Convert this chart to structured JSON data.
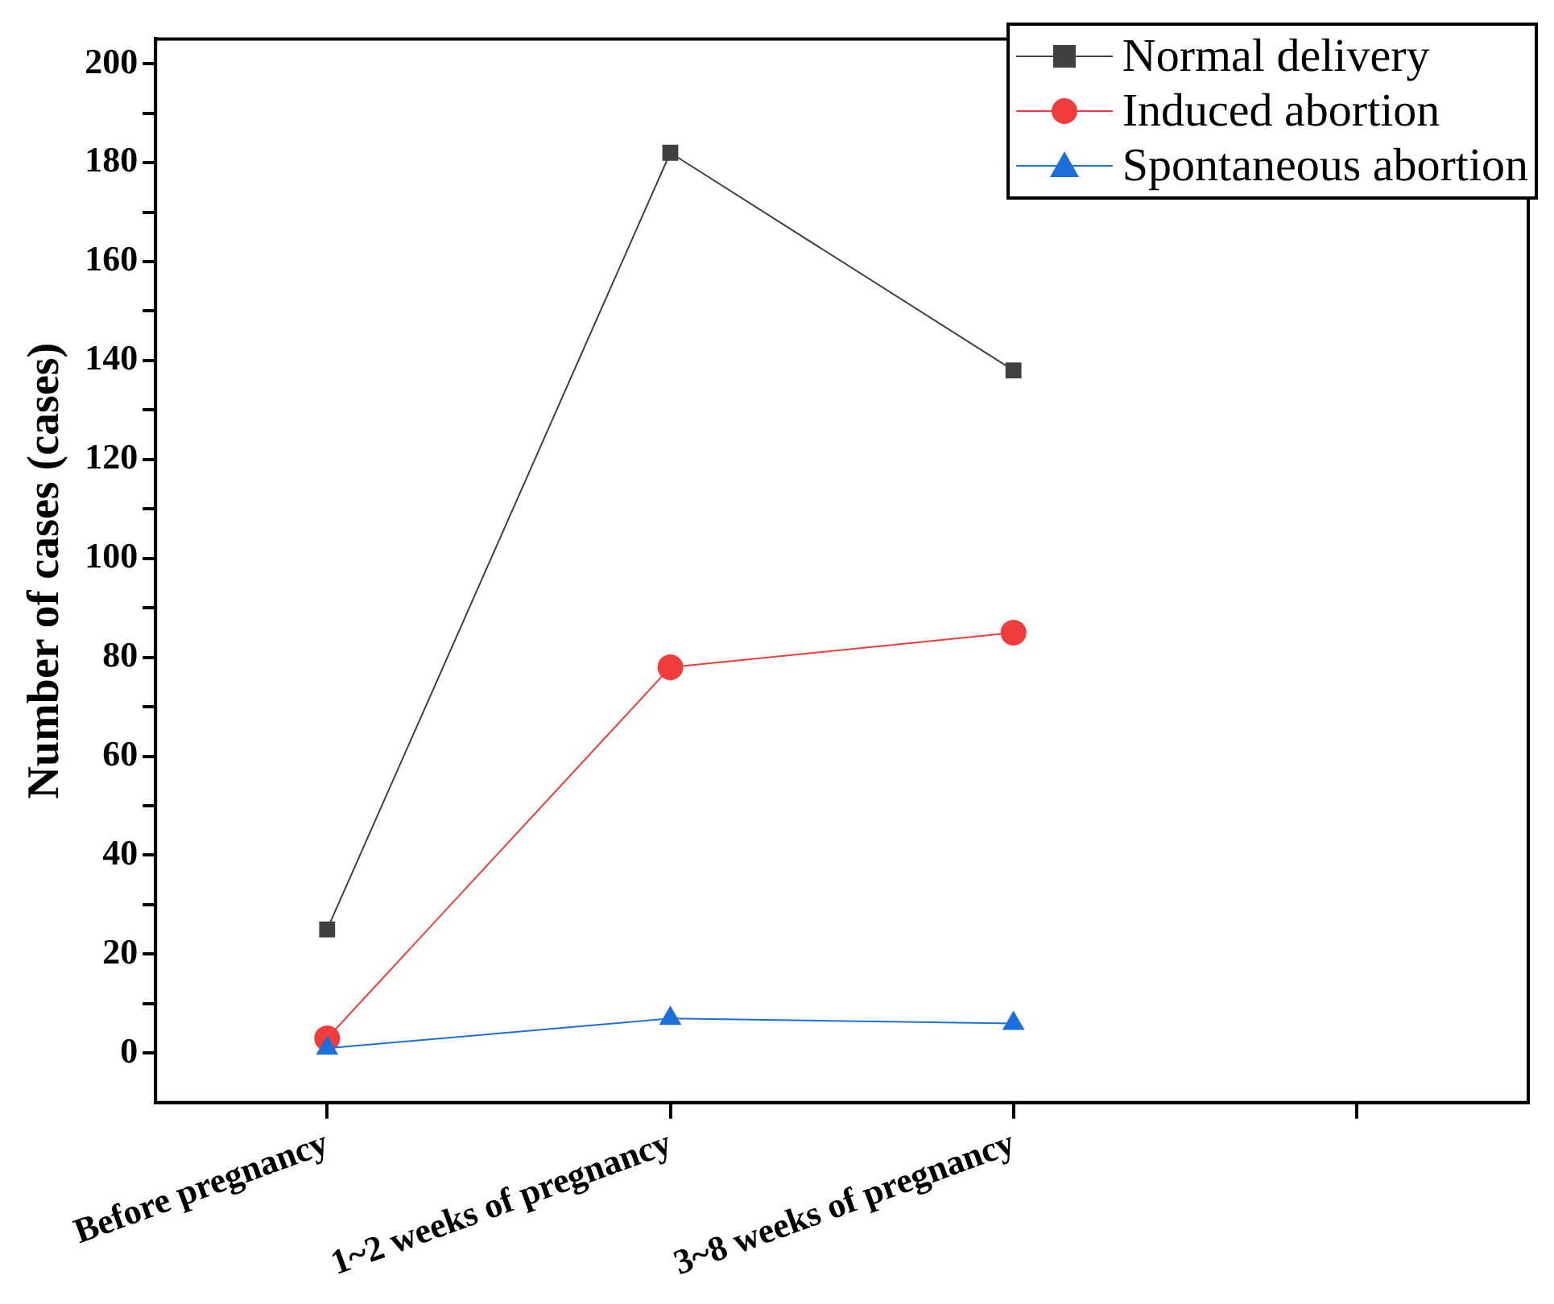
{
  "chart_data": {
    "type": "line",
    "ylabel": "Number of cases (cases)",
    "categories": [
      "Before pregnancy",
      "1~2 weeks of pregnancy",
      "3~8 weeks of pregnancy",
      null
    ],
    "series": [
      {
        "name": "Normal delivery",
        "color": "#404040",
        "marker": "square",
        "values": [
          25,
          182,
          138,
          null
        ]
      },
      {
        "name": "Induced abortion",
        "color": "#f03c3c",
        "marker": "circle",
        "values": [
          3,
          78,
          85,
          null
        ]
      },
      {
        "name": "Spontaneous abortion",
        "color": "#1c6fdc",
        "marker": "triangle",
        "values": [
          1,
          7,
          6,
          null
        ]
      }
    ],
    "ylim": [
      -10,
      205
    ],
    "yticks": [
      0,
      {
        "value": 10,
        "label": null
      },
      20,
      {
        "value": 30,
        "label": null
      },
      40,
      {
        "value": 50,
        "label": null
      },
      60,
      {
        "value": 70,
        "label": null
      },
      80,
      {
        "value": 90,
        "label": null
      },
      100,
      {
        "value": 110,
        "label": null
      },
      120,
      {
        "value": 130,
        "label": null
      },
      140,
      {
        "value": 150,
        "label": null
      },
      160,
      {
        "value": 170,
        "label": null
      },
      180,
      {
        "value": 190,
        "label": null
      },
      200
    ],
    "grid": false,
    "legend": "top right"
  }
}
